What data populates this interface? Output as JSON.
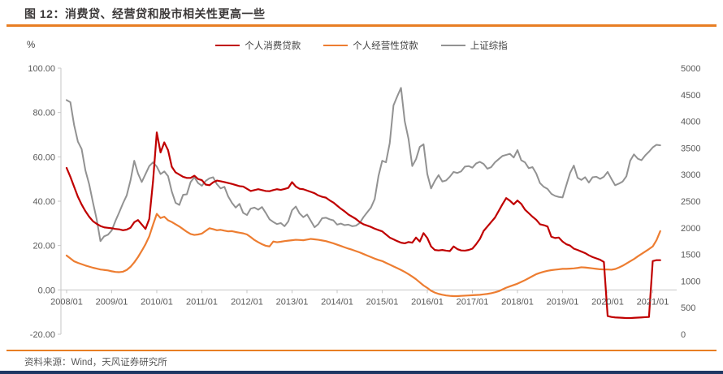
{
  "title": "图 12：消费贷、经营贷和股市相关性更高一些",
  "source": "资料来源：Wind，天风证券研究所",
  "left_axis": {
    "unit": "%",
    "min": -20,
    "max": 100,
    "ticks": [
      "100.00",
      "80.00",
      "60.00",
      "40.00",
      "20.00",
      "0.00",
      "-20.00"
    ]
  },
  "right_axis": {
    "min": 0,
    "max": 5000,
    "ticks": [
      "5000",
      "4500",
      "4000",
      "3500",
      "3000",
      "2500",
      "2000",
      "1500",
      "1000",
      "500",
      "0"
    ]
  },
  "x_axis": {
    "labels": [
      "2008/01",
      "2009/01",
      "2010/01",
      "2011/01",
      "2012/01",
      "2013/01",
      "2014/01",
      "2015/01",
      "2016/01",
      "2017/01",
      "2018/01",
      "2019/01",
      "2020/01",
      "2021/01"
    ]
  },
  "colors": {
    "red": "#c00000",
    "orange": "#ed7d31",
    "gray": "#929292",
    "axis": "#c6c6c6",
    "tick_text": "#595959",
    "accent_orange": "#e87e23",
    "navy": "#1f3864"
  },
  "chart_data": {
    "type": "line",
    "frequency": "monthly",
    "x_start": "2008/01",
    "x_end": "2021/03",
    "x_tick_interval_months": 12,
    "grid": "off",
    "legend_position": "top",
    "series": [
      {
        "name": "个人消费贷款",
        "axis": "left",
        "color": "#c00000",
        "values": [
          55,
          51,
          46.5,
          42,
          38.5,
          35.5,
          33,
          31,
          29.8,
          28.8,
          28.2,
          28,
          27.8,
          27.5,
          27.3,
          26.9,
          27.2,
          28,
          30.5,
          31.5,
          29.5,
          27.5,
          32,
          49,
          71,
          62,
          66.5,
          63,
          55.5,
          53,
          52,
          51,
          50.5,
          50.5,
          51.5,
          50,
          49.5,
          47.5,
          47.2,
          48.5,
          49.3,
          49,
          48.6,
          48.2,
          47.8,
          47.3,
          46.8,
          46.6,
          45.6,
          44.6,
          45,
          45.4,
          45,
          44.6,
          44.5,
          45,
          45.4,
          45.1,
          45.5,
          46,
          48.6,
          46.6,
          45.6,
          45.4,
          44.8,
          44.2,
          43.6,
          42.6,
          42,
          41.6,
          40.4,
          39.4,
          38,
          36.6,
          35.4,
          34,
          33,
          32,
          30.6,
          29.6,
          29,
          28.4,
          27.6,
          27,
          26.4,
          25,
          23.6,
          22.8,
          22,
          21.3,
          21,
          21.6,
          21.3,
          23.6,
          21.8,
          25.6,
          23.4,
          19.6,
          18,
          17.8,
          18,
          17.7,
          17.5,
          19.6,
          18.4,
          17.8,
          17.7,
          18,
          18.6,
          20.6,
          23,
          26.6,
          28.6,
          30.6,
          32.6,
          35.6,
          38.6,
          41.4,
          40.2,
          38.6,
          40.3,
          38.8,
          36.2,
          34.6,
          33,
          31.6,
          29.6,
          29.2,
          28.6,
          24,
          23.4,
          23.6,
          21.8,
          20.6,
          20,
          18.6,
          18,
          17.3,
          16.6,
          15.6,
          14.8,
          14.2,
          13.6,
          12.6,
          -11.8,
          -12.2,
          -12.4,
          -12.5,
          -12.6,
          -12.7,
          -12.7,
          -12.6,
          -12.5,
          -12.4,
          -12.3,
          -12.2,
          13,
          13.4,
          13.4
        ]
      },
      {
        "name": "个人经营性贷款",
        "axis": "left",
        "color": "#ed7d31",
        "values": [
          15.5,
          14.2,
          12.9,
          12.2,
          11.6,
          11,
          10.5,
          10,
          9.6,
          9.2,
          9,
          8.8,
          8.4,
          8.1,
          8,
          8.2,
          9,
          10.4,
          12.4,
          14.8,
          17.6,
          20.6,
          24.2,
          29.4,
          34.3,
          32.4,
          33,
          31.4,
          30.6,
          29.6,
          28.6,
          27.4,
          26.2,
          25.2,
          24.8,
          25,
          25.4,
          26.6,
          27.8,
          27.4,
          26.9,
          27.1,
          26.7,
          26.4,
          26.5,
          26.1,
          25.8,
          25.5,
          25,
          23.8,
          22.5,
          21.5,
          20.6,
          19.9,
          19.6,
          21.8,
          21.5,
          21.7,
          22,
          22.2,
          22.4,
          22.6,
          22.5,
          22.4,
          22.7,
          23,
          22.8,
          22.6,
          22.3,
          22,
          21.5,
          21,
          20.4,
          19.8,
          19.2,
          18.6,
          18.1,
          17.5,
          16.9,
          16.2,
          15.5,
          14.8,
          14.1,
          13.5,
          13,
          12.2,
          11.4,
          10.6,
          9.8,
          9,
          8.1,
          7.1,
          6,
          4.8,
          3.4,
          2,
          0.9,
          -0.4,
          -1.2,
          -1.8,
          -2.2,
          -2.5,
          -2.7,
          -2.8,
          -2.8,
          -2.7,
          -2.6,
          -2.5,
          -2.4,
          -2.3,
          -2.2,
          -2,
          -1.8,
          -1.5,
          -1.1,
          -0.6,
          0.2,
          1,
          1.6,
          2.2,
          2.8,
          3.6,
          4.4,
          5.3,
          6.2,
          7.1,
          7.7,
          8.2,
          8.6,
          8.9,
          9.1,
          9.3,
          9.5,
          9.5,
          9.6,
          9.7,
          9.9,
          10.2,
          10.1,
          9.9,
          9.7,
          9.5,
          9.3,
          9.2,
          9.2,
          9.1,
          9.4,
          10.1,
          10.9,
          11.9,
          12.9,
          13.9,
          15.1,
          16.2,
          17.3,
          18.4,
          19.6,
          22.4,
          26.5
        ]
      },
      {
        "name": "上证综指",
        "axis": "right",
        "color": "#929292",
        "values": [
          4400,
          4360,
          3930,
          3620,
          3480,
          3080,
          2820,
          2480,
          2160,
          1750,
          1840,
          1870,
          1950,
          2130,
          2290,
          2460,
          2610,
          2890,
          3260,
          3020,
          2860,
          3010,
          3160,
          3230,
          3150,
          3010,
          3060,
          2970,
          2680,
          2470,
          2430,
          2620,
          2630,
          2860,
          2950,
          2840,
          2790,
          2880,
          2930,
          2950,
          2820,
          2740,
          2770,
          2590,
          2470,
          2380,
          2450,
          2280,
          2240,
          2360,
          2380,
          2340,
          2390,
          2280,
          2160,
          2110,
          2070,
          2090,
          2030,
          2120,
          2330,
          2400,
          2270,
          2200,
          2250,
          2130,
          2010,
          2070,
          2180,
          2190,
          2160,
          2140,
          2060,
          2080,
          2050,
          2060,
          2030,
          2040,
          2090,
          2200,
          2290,
          2380,
          2540,
          2970,
          3260,
          3230,
          3590,
          4300,
          4470,
          4630,
          4000,
          3670,
          3160,
          3290,
          3520,
          3570,
          3010,
          2740,
          2880,
          2990,
          2870,
          2890,
          2960,
          3050,
          3030,
          3060,
          3150,
          3160,
          3130,
          3210,
          3240,
          3200,
          3110,
          3140,
          3230,
          3290,
          3350,
          3370,
          3390,
          3320,
          3460,
          3270,
          3230,
          3120,
          3140,
          3020,
          2840,
          2770,
          2730,
          2640,
          2600,
          2580,
          2570,
          2800,
          3030,
          3170,
          2940,
          2900,
          2950,
          2850,
          2950,
          2960,
          2920,
          2960,
          3050,
          2920,
          2800,
          2830,
          2870,
          2970,
          3260,
          3380,
          3300,
          3270,
          3360,
          3430,
          3510,
          3560,
          3550
        ]
      }
    ]
  }
}
